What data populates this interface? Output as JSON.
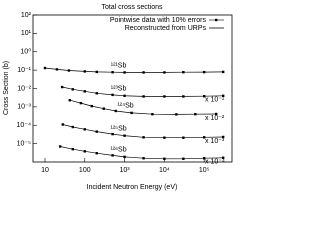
{
  "chart_data": {
    "type": "line",
    "title": "Total cross sections",
    "x_label": "Incident Neutron Energy (eV)",
    "y_label": "Cross Section (b)",
    "log_x": true,
    "log_y": true,
    "color": "#000000",
    "legend": [
      "Pointwise data with 10% errors",
      "Reconstructed from URPs"
    ],
    "legend_position": "top-right",
    "xlim": [
      5,
      500000
    ],
    "xticks": [
      10,
      100,
      {
        "value": 1000,
        "label": "10³"
      },
      {
        "value": 10000,
        "label": "10⁴"
      },
      {
        "value": 100000,
        "label": "10⁵"
      }
    ],
    "ylim": [
      1e-06,
      100
    ],
    "yticks": [
      {
        "value": 1e-05,
        "label": "10⁻⁵"
      },
      {
        "value": 0.0001,
        "label": "10⁻⁴"
      },
      {
        "value": 0.001,
        "label": "10⁻³"
      },
      {
        "value": 0.01,
        "label": "10⁻²"
      },
      {
        "value": 0.1,
        "label": "10⁻¹"
      },
      {
        "value": 1,
        "label": "10⁰"
      },
      {
        "value": 10,
        "label": "10¹"
      },
      {
        "value": 100,
        "label": "10²"
      }
    ],
    "series": [
      {
        "name": "¹²¹Sb",
        "x": [
          10,
          20,
          40,
          100,
          200,
          500,
          1000,
          3000,
          10000,
          30000,
          100000,
          300000
        ],
        "values": [
          0.13,
          0.11,
          0.095,
          0.085,
          0.08,
          0.077,
          0.075,
          0.075,
          0.075,
          0.077,
          0.078,
          0.08
        ]
      },
      {
        "name": "¹²³Sb",
        "scale_label": "x 10⁻¹",
        "x": [
          27,
          50,
          100,
          200,
          500,
          1000,
          3000,
          10000,
          30000,
          100000,
          300000
        ],
        "values": [
          0.012,
          0.009,
          0.007,
          0.0055,
          0.0045,
          0.004,
          0.0037,
          0.0037,
          0.0037,
          0.0038,
          0.004
        ]
      },
      {
        "name": "¹²⁴Sb",
        "scale_label": "x 10⁻²",
        "x": [
          42,
          80,
          150,
          300,
          600,
          1500,
          5000,
          20000,
          60000,
          200000
        ],
        "values": [
          0.0023,
          0.0016,
          0.0011,
          0.0008,
          0.0006,
          0.00047,
          0.0004,
          0.00039,
          0.0004,
          0.00041
        ]
      },
      {
        "name": "¹²⁵Sb",
        "scale_label": "x 10⁻³",
        "x": [
          28,
          50,
          100,
          200,
          500,
          1000,
          3000,
          10000,
          30000,
          100000,
          300000
        ],
        "values": [
          0.00011,
          8e-05,
          6e-05,
          4.5e-05,
          3.3e-05,
          2.7e-05,
          2.2e-05,
          2.1e-05,
          2.1e-05,
          2.2e-05,
          2.3e-05
        ]
      },
      {
        "name": "¹²⁶Sb",
        "scale_label": "x 10⁻⁴",
        "x": [
          24,
          50,
          100,
          200,
          500,
          1000,
          3000,
          10000,
          30000,
          100000,
          300000
        ],
        "values": [
          7e-06,
          5e-06,
          3.8e-06,
          3e-06,
          2.3e-06,
          1.9e-06,
          1.6e-06,
          1.5e-06,
          1.5e-06,
          1.6e-06,
          1.7e-06
        ]
      }
    ]
  }
}
